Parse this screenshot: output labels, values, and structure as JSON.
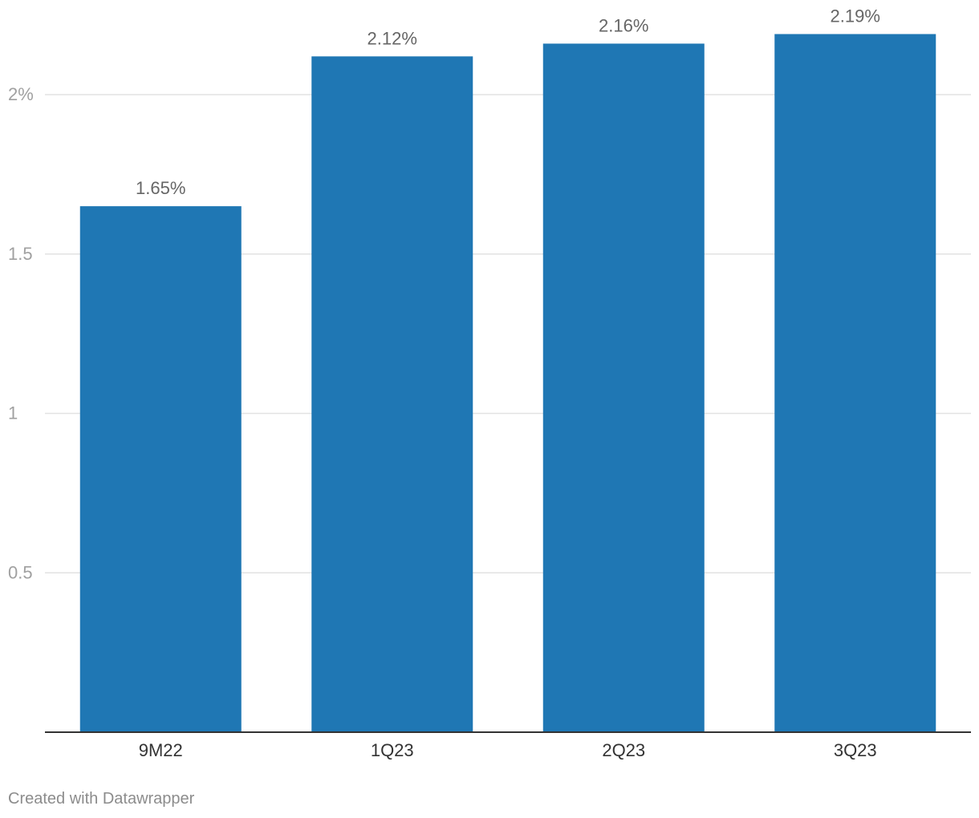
{
  "chart_data": {
    "type": "bar",
    "categories": [
      "9M22",
      "1Q23",
      "2Q23",
      "3Q23"
    ],
    "values": [
      1.65,
      2.12,
      2.16,
      2.19
    ],
    "value_labels": [
      "1.65%",
      "2.12%",
      "2.16%",
      "2.19%"
    ],
    "title": "",
    "xlabel": "",
    "ylabel": "",
    "ylim": [
      0,
      2.2
    ],
    "yticks": [
      0.5,
      1,
      1.5,
      2
    ],
    "ytick_labels": [
      "0.5",
      "1",
      "1.5",
      "2%"
    ],
    "grid": true,
    "bar_color": "#1f77b4"
  },
  "footer": {
    "credit": "Created with Datawrapper"
  }
}
